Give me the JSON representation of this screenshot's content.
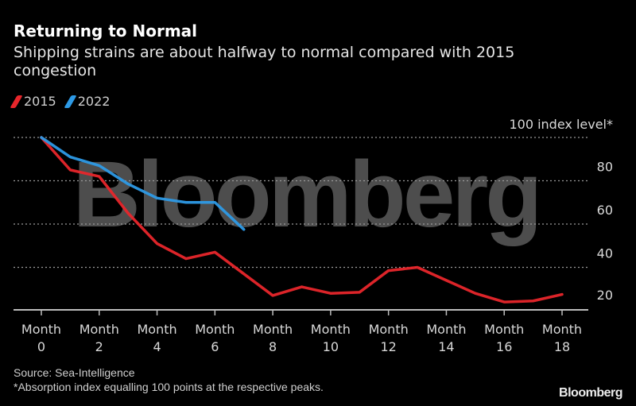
{
  "header": {
    "title": "Returning to Normal",
    "subtitle": "Shipping strains are about halfway to normal compared with 2015 congestion"
  },
  "footer": {
    "source": "Source: Sea-Intelligence",
    "note": "*Absorption index equalling 100 points at the respective peaks.",
    "brand": "Bloomberg"
  },
  "watermark": "Bloomberg",
  "chart_data": {
    "type": "line",
    "title": "Returning to Normal",
    "subtitle": "Shipping strains are about halfway to normal compared with 2015 congestion",
    "xlabel": "",
    "ylabel": "",
    "x": [
      0,
      1,
      2,
      3,
      4,
      5,
      6,
      7,
      8,
      9,
      10,
      11,
      12,
      13,
      14,
      15,
      16,
      17,
      18
    ],
    "xticks": [
      0,
      2,
      4,
      6,
      8,
      10,
      12,
      14,
      16,
      18
    ],
    "xtick_labels": [
      {
        "line1": "Month",
        "line2": "0"
      },
      {
        "line1": "Month",
        "line2": "2"
      },
      {
        "line1": "Month",
        "line2": "4"
      },
      {
        "line1": "Month",
        "line2": "6"
      },
      {
        "line1": "Month",
        "line2": "8"
      },
      {
        "line1": "Month",
        "line2": "10"
      },
      {
        "line1": "Month",
        "line2": "12"
      },
      {
        "line1": "Month",
        "line2": "14"
      },
      {
        "line1": "Month",
        "line2": "16"
      },
      {
        "line1": "Month",
        "line2": "18"
      }
    ],
    "yticks": [
      20,
      40,
      60,
      80,
      100
    ],
    "ytick_labels": [
      "20",
      "40",
      "60",
      "80",
      "100 index level*"
    ],
    "ylim": [
      20,
      100
    ],
    "xlim": [
      0,
      18
    ],
    "grid": true,
    "legend_position": "top-left",
    "series": [
      {
        "name": "2015",
        "color": "#e8262b",
        "values": [
          100,
          85,
          82,
          65,
          51,
          44,
          47,
          37,
          27,
          31,
          28,
          28.5,
          38.5,
          40,
          34,
          28,
          24,
          24.5,
          27.5
        ]
      },
      {
        "name": "2022",
        "color": "#2d9ae6",
        "values": [
          100,
          91,
          87,
          78.5,
          72,
          70,
          70,
          57.5
        ]
      }
    ]
  }
}
